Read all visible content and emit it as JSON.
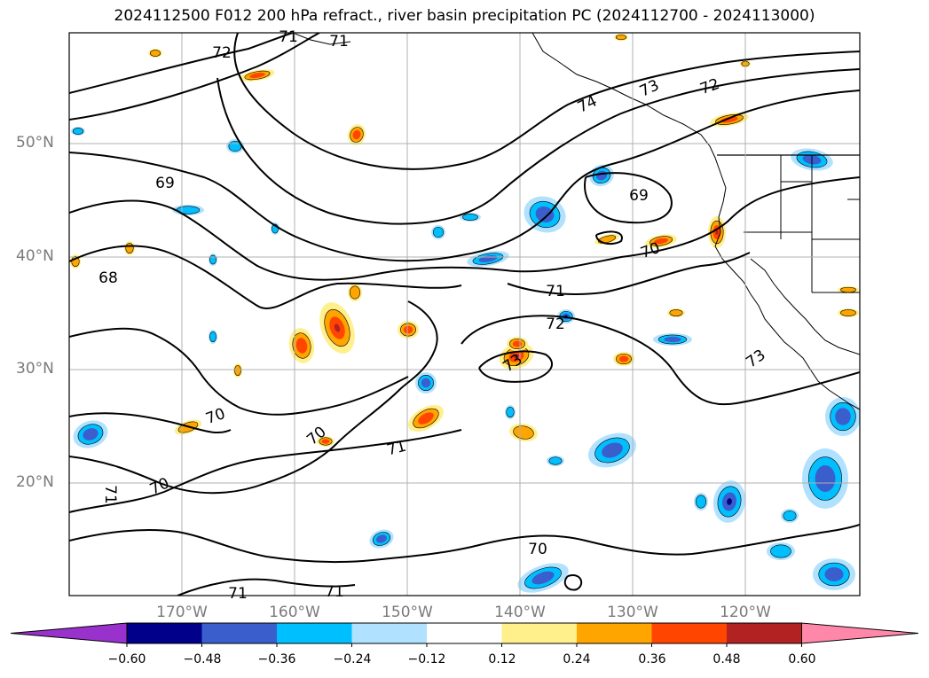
{
  "title": "2024112500 F012 200 hPa refract., river basin precipitation PC (2024112700 - 2024113000)",
  "lat_labels": [
    "50°N",
    "40°N",
    "30°N",
    "20°N"
  ],
  "lon_labels": [
    "170°W",
    "160°W",
    "150°W",
    "140°W",
    "130°W",
    "120°W"
  ],
  "contour_labels": [
    "72",
    "71",
    "71",
    "74",
    "73",
    "72",
    "69",
    "69",
    "68",
    "70",
    "71",
    "72",
    "73",
    "73",
    "70",
    "70",
    "71",
    "70",
    "71",
    "70",
    "71",
    "71"
  ],
  "colorbar": {
    "ticks": [
      "−0.60",
      "−0.48",
      "−0.36",
      "−0.24",
      "−0.12",
      "0.12",
      "0.24",
      "0.36",
      "0.48",
      "0.60"
    ],
    "colors": [
      "#9932cc",
      "#00008b",
      "#3a5fcd",
      "#00bfff",
      "#b0e2ff",
      "#ffffff",
      "#fff08c",
      "#ffa500",
      "#ff4500",
      "#b22222",
      "#ff88aa"
    ]
  },
  "colors": {
    "frame": "#000000",
    "grid": "#b0b0b0",
    "contour": "#000000",
    "axis_label": "#7a7a7a"
  }
}
